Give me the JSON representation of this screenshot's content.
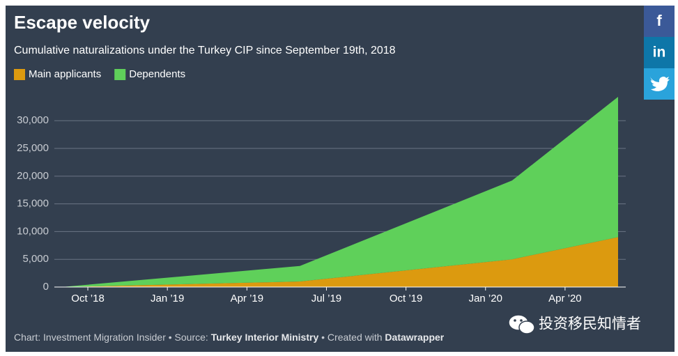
{
  "chart_data": {
    "type": "stacked-area",
    "title": "Escape velocity",
    "subtitle": "Cumulative naturalizations under the Turkey CIP since September 19th, 2018",
    "x": [
      "2018-09",
      "2019-06",
      "2020-02",
      "2020-06"
    ],
    "series": [
      {
        "name": "Main applicants",
        "color": "#dc9a0f",
        "values": [
          0,
          1000,
          5000,
          9000
        ]
      },
      {
        "name": "Dependents",
        "color": "#5fd05a",
        "values": [
          0,
          2800,
          14200,
          25300
        ]
      }
    ],
    "xlim": [
      "2018-09",
      "2020-06"
    ],
    "xticks": [
      {
        "value": "2018-10",
        "label": "Oct ’18"
      },
      {
        "value": "2019-01",
        "label": "Jan ’19"
      },
      {
        "value": "2019-04",
        "label": "Apr ’19"
      },
      {
        "value": "2019-07",
        "label": "Jul ’19"
      },
      {
        "value": "2019-10",
        "label": "Oct ’19"
      },
      {
        "value": "2020-01",
        "label": "Jan ’20"
      },
      {
        "value": "2020-04",
        "label": "Apr ’20"
      }
    ],
    "ylim": [
      0,
      34300
    ],
    "yticks": [
      0,
      {
        "value": 5000,
        "label": "5,000"
      },
      {
        "value": 10000,
        "label": "10,000"
      },
      {
        "value": 15000,
        "label": "15,000"
      },
      {
        "value": 20000,
        "label": "20,000"
      },
      {
        "value": 25000,
        "label": "25,000"
      },
      {
        "value": 30000,
        "label": "30,000"
      }
    ],
    "grid": true,
    "legend": "top-left",
    "footer": {
      "part1": "Chart: Investment Migration Insider • Source: ",
      "source": "Turkey Interior Ministry",
      "part2": " • Created with ",
      "tool": "Datawrapper"
    }
  },
  "social": {
    "facebook": "f",
    "linkedin": "in"
  },
  "watermark": "投资移民知情者"
}
